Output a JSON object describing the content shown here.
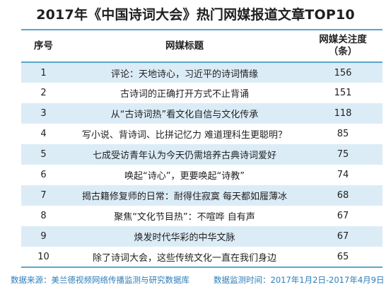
{
  "title": "2017年《中国诗词大会》热门网媒报道文章TOP10",
  "table": {
    "headers": {
      "rank": "序号",
      "headline": "网媒标题",
      "count_line1": "网媒关注度",
      "count_line2": "（条）"
    },
    "rows": [
      {
        "rank": "1",
        "headline": "评论：天地诗心，习近平的诗词情缘",
        "count": "156"
      },
      {
        "rank": "2",
        "headline": "古诗词的正确打开方式不止背诵",
        "count": "151"
      },
      {
        "rank": "3",
        "headline": "从“古诗词热”看文化自信与文化传承",
        "count": "118"
      },
      {
        "rank": "4",
        "headline": "写小说、背诗词、比拼记忆力 难道理科生更聪明？",
        "count": "85"
      },
      {
        "rank": "5",
        "headline": "七成受访青年认为今天仍需培养古典诗词爱好",
        "count": "75"
      },
      {
        "rank": "6",
        "headline": "唤起“诗心”，更要唤起“诗教”",
        "count": "74"
      },
      {
        "rank": "7",
        "headline": "揭古籍修复师的日常：耐得住寂寞 每天都如履薄冰",
        "count": "68"
      },
      {
        "rank": "8",
        "headline": "聚焦“文化节目热”：不喧哗 自有声",
        "count": "67"
      },
      {
        "rank": "9",
        "headline": "焕发时代华彩的中华文脉",
        "count": "67"
      },
      {
        "rank": "10",
        "headline": "除了诗词大会，这些传统文化一直在我们身边",
        "count": "65"
      }
    ]
  },
  "footer": {
    "source": "数据来源：美兰德视频网络传播监测与研究数据库",
    "period": "数据监测时间：2017年1月2日-2017年4月9日"
  },
  "colors": {
    "accent": "#5aa6c9",
    "stripe": "#dcecf7",
    "footer_text": "#2e7db8"
  }
}
